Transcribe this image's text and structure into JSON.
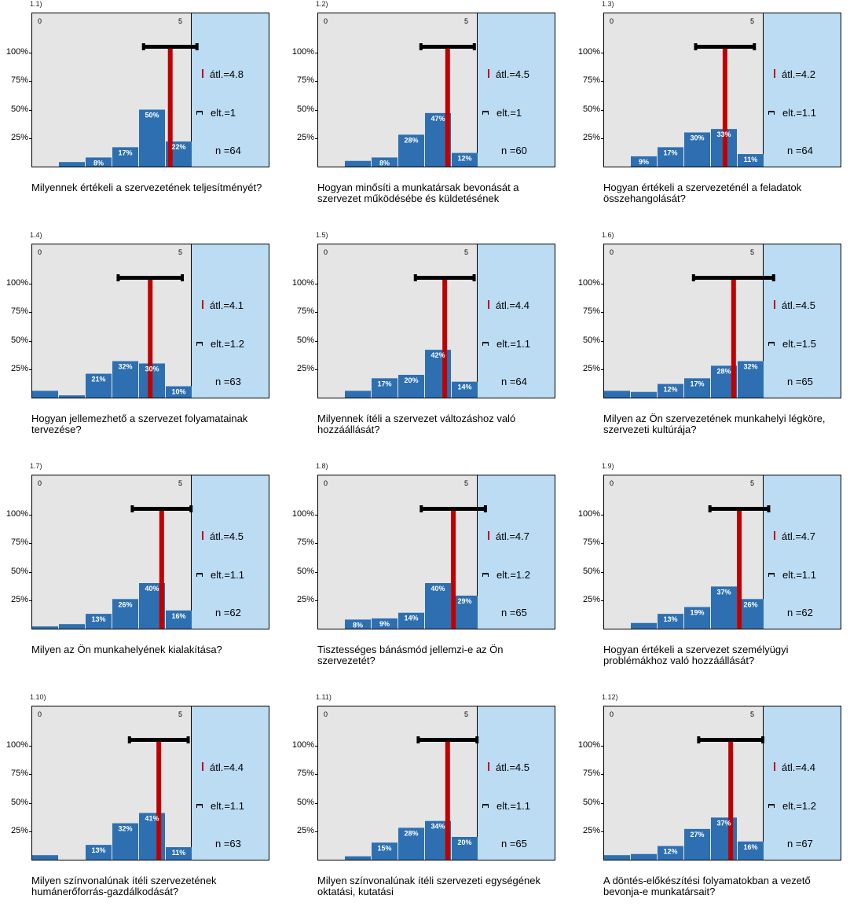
{
  "colors": {
    "bar": "#2d6fb0",
    "mean": "#c00000",
    "plot_bg": "#e5e5e5",
    "side_bg": "#bcdcf4"
  },
  "chart_data": [
    {
      "type": "bar",
      "id": "1.1)",
      "question": "Milyennek értékeli a szervezetének teljesítményét?",
      "scale_min_label": "0",
      "scale_max_label": "5",
      "ytick_labels": [
        "100%",
        "75%",
        "50%",
        "25%"
      ],
      "values": [
        4,
        8,
        17,
        50,
        22
      ],
      "value_labels": [
        "",
        "8%",
        "17%",
        "50%",
        "22%"
      ],
      "mean": 4.8,
      "sd": 1,
      "mean_label": "átl.=4.8",
      "sd_label": "elt.=1",
      "n_label": "n =64"
    },
    {
      "type": "bar",
      "id": "1.2)",
      "question": "Hogyan minősíti a munkatársak bevonását a szervezet működésébe és küldetésének",
      "scale_min_label": "0",
      "scale_max_label": "5",
      "ytick_labels": [
        "100%",
        "75%",
        "50%",
        "25%"
      ],
      "values": [
        5,
        8,
        28,
        47,
        12
      ],
      "value_labels": [
        "",
        "8%",
        "28%",
        "47%",
        "12%"
      ],
      "mean": 4.5,
      "sd": 1,
      "mean_label": "átl.=4.5",
      "sd_label": "elt.=1",
      "n_label": "n =60"
    },
    {
      "type": "bar",
      "id": "1.3)",
      "question": "Hogyan értékeli a szervezeténél a feladatok összehangolását?",
      "scale_min_label": "0",
      "scale_max_label": "5",
      "ytick_labels": [
        "100%",
        "75%",
        "50%",
        "25%"
      ],
      "values": [
        0,
        9,
        17,
        30,
        33,
        11
      ],
      "value_labels": [
        "",
        "9%",
        "17%",
        "30%",
        "33%",
        "11%"
      ],
      "mean": 4.2,
      "sd": 1.1,
      "mean_label": "átl.=4.2",
      "sd_label": "elt.=1.1",
      "n_label": "n =64"
    },
    {
      "type": "bar",
      "id": "1.4)",
      "question": "Hogyan jellemezhető a szervezet folyamatainak tervezése?",
      "scale_min_label": "0",
      "scale_max_label": "5",
      "ytick_labels": [
        "100%",
        "75%",
        "50%",
        "25%"
      ],
      "values": [
        6,
        2,
        21,
        32,
        30,
        10
      ],
      "value_labels": [
        "",
        "",
        "21%",
        "32%",
        "30%",
        "10%"
      ],
      "mean": 4.1,
      "sd": 1.2,
      "mean_label": "átl.=4.1",
      "sd_label": "elt.=1.2",
      "n_label": "n =63"
    },
    {
      "type": "bar",
      "id": "1.5)",
      "question": "Milyennek ítéli a szervezet változáshoz való hozzáállását?",
      "scale_min_label": "0",
      "scale_max_label": "5",
      "ytick_labels": [
        "100%",
        "75%",
        "50%",
        "25%"
      ],
      "values": [
        0,
        6,
        17,
        20,
        42,
        14
      ],
      "value_labels": [
        "",
        "",
        "17%",
        "20%",
        "42%",
        "14%"
      ],
      "mean": 4.4,
      "sd": 1.1,
      "mean_label": "átl.=4.4",
      "sd_label": "elt.=1.1",
      "n_label": "n =64"
    },
    {
      "type": "bar",
      "id": "1.6)",
      "question": "Milyen az Ön szervezetének munkahelyi légköre, szervezeti kultúrája?",
      "scale_min_label": "0",
      "scale_max_label": "5",
      "ytick_labels": [
        "100%",
        "75%",
        "50%",
        "25%"
      ],
      "values": [
        6,
        5,
        12,
        17,
        28,
        32
      ],
      "value_labels": [
        "",
        "",
        "12%",
        "17%",
        "28%",
        "32%"
      ],
      "mean": 4.5,
      "sd": 1.5,
      "mean_label": "átl.=4.5",
      "sd_label": "elt.=1.5",
      "n_label": "n =65"
    },
    {
      "type": "bar",
      "id": "1.7)",
      "question": "Milyen az Ön munkahelyének kialakítása?",
      "scale_min_label": "0",
      "scale_max_label": "5",
      "ytick_labels": [
        "100%",
        "75%",
        "50%",
        "25%"
      ],
      "values": [
        2,
        4,
        13,
        26,
        40,
        16
      ],
      "value_labels": [
        "",
        "",
        "13%",
        "26%",
        "40%",
        "16%"
      ],
      "mean": 4.5,
      "sd": 1.1,
      "mean_label": "átl.=4.5",
      "sd_label": "elt.=1.1",
      "n_label": "n =62"
    },
    {
      "type": "bar",
      "id": "1.8)",
      "question": "Tisztességes bánásmód jellemzi-e az Ön szervezetét?",
      "scale_min_label": "0",
      "scale_max_label": "5",
      "ytick_labels": [
        "100%",
        "75%",
        "50%",
        "25%"
      ],
      "values": [
        0,
        8,
        9,
        14,
        40,
        29
      ],
      "value_labels": [
        "",
        "8%",
        "9%",
        "14%",
        "40%",
        "29%"
      ],
      "mean": 4.7,
      "sd": 1.2,
      "mean_label": "átl.=4.7",
      "sd_label": "elt.=1.2",
      "n_label": "n =65"
    },
    {
      "type": "bar",
      "id": "1.9)",
      "question": "Hogyan értékeli a szervezet személyügyi problémákhoz való hozzáállását?",
      "scale_min_label": "0",
      "scale_max_label": "5",
      "ytick_labels": [
        "100%",
        "75%",
        "50%",
        "25%"
      ],
      "values": [
        0,
        5,
        13,
        19,
        37,
        26
      ],
      "value_labels": [
        "",
        "",
        "13%",
        "19%",
        "37%",
        "26%"
      ],
      "mean": 4.7,
      "sd": 1.1,
      "mean_label": "átl.=4.7",
      "sd_label": "elt.=1.1",
      "n_label": "n =62"
    },
    {
      "type": "bar",
      "id": "1.10)",
      "question": "Milyen színvonalúnak ítéli szervezetének humánerőforrás-gazdálkodását?",
      "scale_min_label": "0",
      "scale_max_label": "5",
      "ytick_labels": [
        "100%",
        "75%",
        "50%",
        "25%"
      ],
      "values": [
        4,
        0,
        13,
        32,
        41,
        11
      ],
      "value_labels": [
        "",
        "",
        "13%",
        "32%",
        "41%",
        "11%"
      ],
      "mean": 4.4,
      "sd": 1.1,
      "mean_label": "átl.=4.4",
      "sd_label": "elt.=1.1",
      "n_label": "n =63"
    },
    {
      "type": "bar",
      "id": "1.11)",
      "question": "Milyen színvonalúnak ítéli szervezeti egységének oktatási, kutatási",
      "scale_min_label": "0",
      "scale_max_label": "5",
      "ytick_labels": [
        "100%",
        "75%",
        "50%",
        "25%"
      ],
      "values": [
        0,
        3,
        15,
        28,
        34,
        20
      ],
      "value_labels": [
        "",
        "",
        "15%",
        "28%",
        "34%",
        "20%"
      ],
      "mean": 4.5,
      "sd": 1.1,
      "mean_label": "átl.=4.5",
      "sd_label": "elt.=1.1",
      "n_label": "n =65"
    },
    {
      "type": "bar",
      "id": "1.12)",
      "question": "A döntés-előkészítési folyamatokban a vezető bevonja-e munkatársait?",
      "scale_min_label": "0",
      "scale_max_label": "5",
      "ytick_labels": [
        "100%",
        "75%",
        "50%",
        "25%"
      ],
      "values": [
        4,
        5,
        12,
        27,
        37,
        16
      ],
      "value_labels": [
        "",
        "",
        "12%",
        "27%",
        "37%",
        "16%"
      ],
      "mean": 4.4,
      "sd": 1.2,
      "mean_label": "átl.=4.4",
      "sd_label": "elt.=1.2",
      "n_label": "n =67"
    }
  ]
}
